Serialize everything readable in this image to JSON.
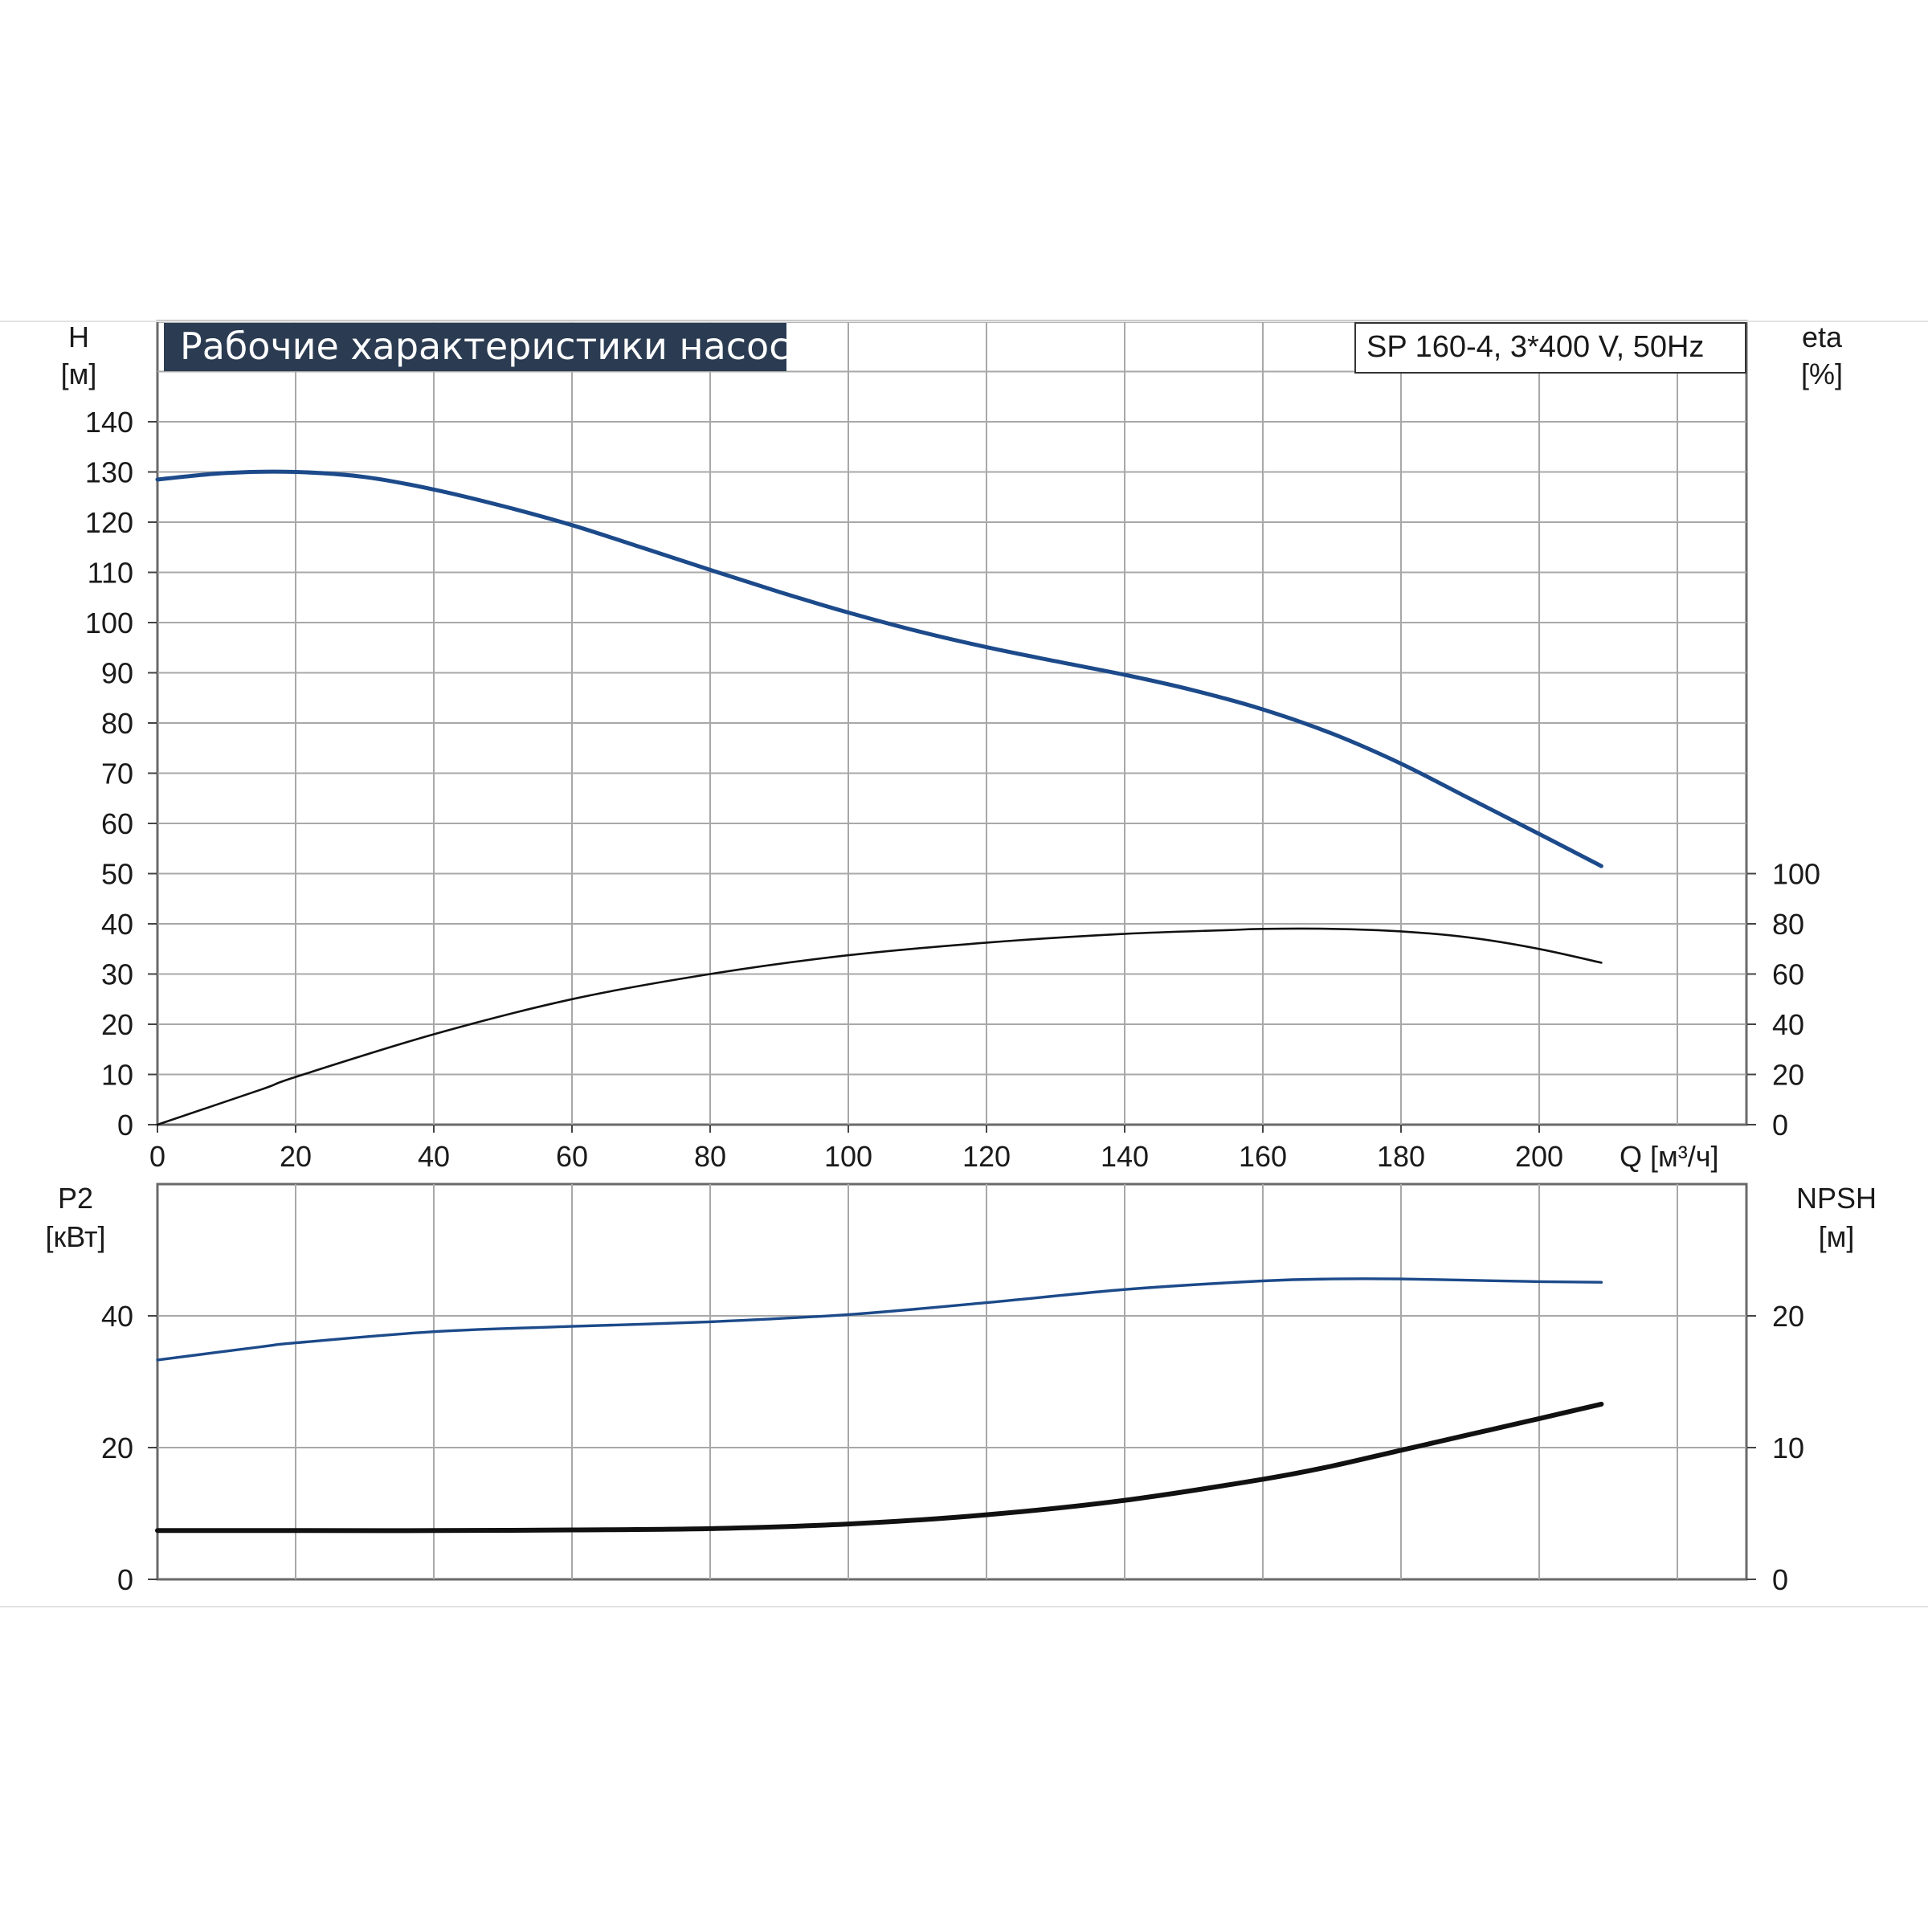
{
  "chart_data": [
    {
      "type": "line",
      "title": "Рабочие характеристики насоса",
      "subtitle": "SP 160-4, 3*400 V, 50Hz",
      "xlabel": "Q [м³/ч]",
      "xlim": [
        0,
        230
      ],
      "xticks": [
        "0",
        "20",
        "40",
        "60",
        "80",
        "100",
        "120",
        "140",
        "160",
        "180",
        "200"
      ],
      "left_axis": {
        "label_line1": "H",
        "label_line2": "[м]",
        "ylim": [
          0,
          160
        ],
        "ticks": [
          "0",
          "10",
          "20",
          "30",
          "40",
          "50",
          "60",
          "70",
          "80",
          "90",
          "100",
          "110",
          "120",
          "130",
          "140"
        ]
      },
      "right_axis": {
        "label_line1": "eta",
        "label_line2": "[%]",
        "ylim": [
          0,
          320
        ],
        "ticks": [
          "0",
          "20",
          "40",
          "60",
          "80",
          "100"
        ]
      },
      "grid": true,
      "series": [
        {
          "axis": "left",
          "color": "#1c4a8a",
          "x": [
            0,
            10,
            20,
            30,
            40,
            50,
            60,
            70,
            80,
            90,
            100,
            110,
            120,
            130,
            140,
            150,
            160,
            170,
            180,
            190,
            200,
            209
          ],
          "y": [
            128.5,
            129.8,
            130,
            129,
            126.5,
            123.2,
            119.4,
            115.0,
            110.5,
            106.1,
            102.0,
            98.3,
            95.1,
            92.3,
            89.6,
            86.5,
            82.7,
            77.9,
            71.9,
            64.9,
            57.9,
            51.5
          ]
        },
        {
          "axis": "right",
          "color": "#111111",
          "x": [
            0,
            15,
            20,
            40,
            60,
            80,
            100,
            120,
            140,
            155,
            160,
            170,
            180,
            190,
            200,
            209
          ],
          "y": [
            0,
            14,
            19,
            36,
            50,
            60,
            67.5,
            72.5,
            76,
            77.5,
            78,
            78,
            77,
            74.5,
            70,
            64.5
          ]
        }
      ]
    },
    {
      "type": "line",
      "xlim": [
        0,
        230
      ],
      "left_axis": {
        "label_line1": "P2",
        "label_line2": "[кВт]",
        "ylim": [
          0,
          60
        ],
        "ticks": [
          "0",
          "20",
          "40"
        ]
      },
      "right_axis": {
        "label_line1": "NPSH",
        "label_line2": "[м]",
        "ylim": [
          0,
          30
        ],
        "ticks": [
          "0",
          "10",
          "20"
        ]
      },
      "grid": true,
      "series": [
        {
          "axis": "left",
          "color": "#1c4a8a",
          "x": [
            0,
            15,
            20,
            40,
            60,
            80,
            100,
            120,
            140,
            160,
            170,
            180,
            190,
            200,
            209
          ],
          "y": [
            33.3,
            35.3,
            35.9,
            37.6,
            38.4,
            39.1,
            40.2,
            42.0,
            44.0,
            45.3,
            45.6,
            45.6,
            45.4,
            45.2,
            45.1
          ]
        },
        {
          "axis": "right",
          "color": "#111111",
          "x": [
            0,
            15,
            20,
            40,
            60,
            80,
            100,
            120,
            140,
            160,
            170,
            180,
            190,
            200,
            209
          ],
          "y": [
            3.7,
            3.7,
            3.7,
            3.7,
            3.75,
            3.85,
            4.2,
            4.9,
            6.0,
            7.6,
            8.6,
            9.8,
            11.0,
            12.2,
            13.3
          ]
        }
      ]
    }
  ]
}
